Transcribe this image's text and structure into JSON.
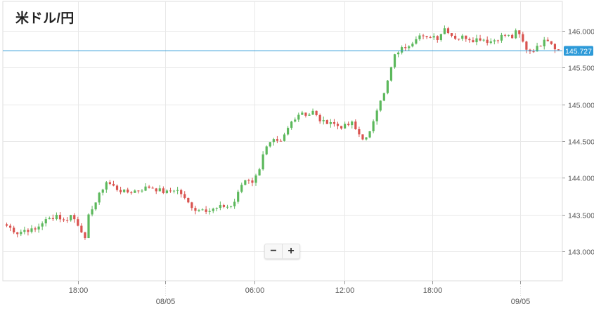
{
  "header": {
    "title": "米ドル/円"
  },
  "zoom_controls": {
    "minus_label": "−",
    "plus_label": "+"
  },
  "colors": {
    "up": "#5cb85c",
    "down": "#d9534f",
    "current_line": "#2d9ad8",
    "current_badge_bg": "#2d9ad8",
    "grid": "#e8e8e8",
    "axis": "#999999",
    "label": "#555555"
  },
  "chart_data": {
    "type": "candlestick",
    "title": "米ドル/円",
    "ylim": [
      142.6,
      146.4
    ],
    "y_ticks": [
      "146.000",
      "145.500",
      "145.000",
      "144.500",
      "144.000",
      "143.500",
      "143.000"
    ],
    "y_tick_values": [
      146.0,
      145.5,
      145.0,
      144.5,
      144.0,
      143.5,
      143.0
    ],
    "x_ticks": [
      {
        "t": 0.135,
        "time": "18:00",
        "date": ""
      },
      {
        "t": 0.29,
        "time": "",
        "date": "08/05"
      },
      {
        "t": 0.45,
        "time": "06:00",
        "date": ""
      },
      {
        "t": 0.61,
        "time": "12:00",
        "date": ""
      },
      {
        "t": 0.768,
        "time": "18:00",
        "date": ""
      },
      {
        "t": 0.925,
        "time": "",
        "date": "09/05"
      }
    ],
    "current_price": 145.727,
    "current_price_label": "145.727",
    "grid": true,
    "anchors": [
      [
        0.0,
        143.35
      ],
      [
        0.01,
        143.3
      ],
      [
        0.02,
        143.25
      ],
      [
        0.035,
        143.3
      ],
      [
        0.05,
        143.28
      ],
      [
        0.065,
        143.4
      ],
      [
        0.08,
        143.45
      ],
      [
        0.09,
        143.5
      ],
      [
        0.105,
        143.4
      ],
      [
        0.115,
        143.5
      ],
      [
        0.125,
        143.42
      ],
      [
        0.135,
        143.3
      ],
      [
        0.142,
        143.15
      ],
      [
        0.15,
        143.55
      ],
      [
        0.16,
        143.65
      ],
      [
        0.17,
        143.8
      ],
      [
        0.18,
        143.95
      ],
      [
        0.19,
        143.9
      ],
      [
        0.2,
        143.85
      ],
      [
        0.215,
        143.8
      ],
      [
        0.23,
        143.82
      ],
      [
        0.245,
        143.85
      ],
      [
        0.26,
        143.88
      ],
      [
        0.27,
        143.85
      ],
      [
        0.28,
        143.82
      ],
      [
        0.29,
        143.8
      ],
      [
        0.305,
        143.85
      ],
      [
        0.315,
        143.8
      ],
      [
        0.325,
        143.68
      ],
      [
        0.335,
        143.62
      ],
      [
        0.345,
        143.55
      ],
      [
        0.355,
        143.6
      ],
      [
        0.365,
        143.55
      ],
      [
        0.38,
        143.58
      ],
      [
        0.395,
        143.62
      ],
      [
        0.405,
        143.6
      ],
      [
        0.415,
        143.7
      ],
      [
        0.425,
        143.9
      ],
      [
        0.435,
        144.0
      ],
      [
        0.445,
        143.95
      ],
      [
        0.455,
        144.05
      ],
      [
        0.465,
        144.35
      ],
      [
        0.475,
        144.45
      ],
      [
        0.485,
        144.5
      ],
      [
        0.495,
        144.45
      ],
      [
        0.505,
        144.6
      ],
      [
        0.515,
        144.75
      ],
      [
        0.525,
        144.85
      ],
      [
        0.535,
        144.9
      ],
      [
        0.545,
        144.85
      ],
      [
        0.555,
        144.9
      ],
      [
        0.565,
        144.8
      ],
      [
        0.575,
        144.75
      ],
      [
        0.585,
        144.78
      ],
      [
        0.595,
        144.72
      ],
      [
        0.605,
        144.7
      ],
      [
        0.615,
        144.7
      ],
      [
        0.625,
        144.75
      ],
      [
        0.635,
        144.62
      ],
      [
        0.645,
        144.55
      ],
      [
        0.655,
        144.52
      ],
      [
        0.665,
        144.8
      ],
      [
        0.675,
        145.05
      ],
      [
        0.685,
        145.15
      ],
      [
        0.695,
        145.45
      ],
      [
        0.705,
        145.7
      ],
      [
        0.715,
        145.75
      ],
      [
        0.725,
        145.8
      ],
      [
        0.735,
        145.85
      ],
      [
        0.745,
        145.95
      ],
      [
        0.76,
        145.88
      ],
      [
        0.77,
        145.95
      ],
      [
        0.78,
        145.9
      ],
      [
        0.795,
        146.05
      ],
      [
        0.805,
        145.95
      ],
      [
        0.815,
        145.9
      ],
      [
        0.83,
        145.92
      ],
      [
        0.845,
        145.88
      ],
      [
        0.86,
        145.9
      ],
      [
        0.875,
        145.85
      ],
      [
        0.885,
        145.88
      ],
      [
        0.895,
        145.92
      ],
      [
        0.905,
        145.95
      ],
      [
        0.915,
        145.9
      ],
      [
        0.925,
        146.0
      ],
      [
        0.935,
        145.85
      ],
      [
        0.945,
        145.72
      ],
      [
        0.955,
        145.75
      ],
      [
        0.965,
        145.78
      ],
      [
        0.975,
        145.92
      ],
      [
        0.985,
        145.85
      ],
      [
        1.0,
        145.73
      ]
    ]
  }
}
